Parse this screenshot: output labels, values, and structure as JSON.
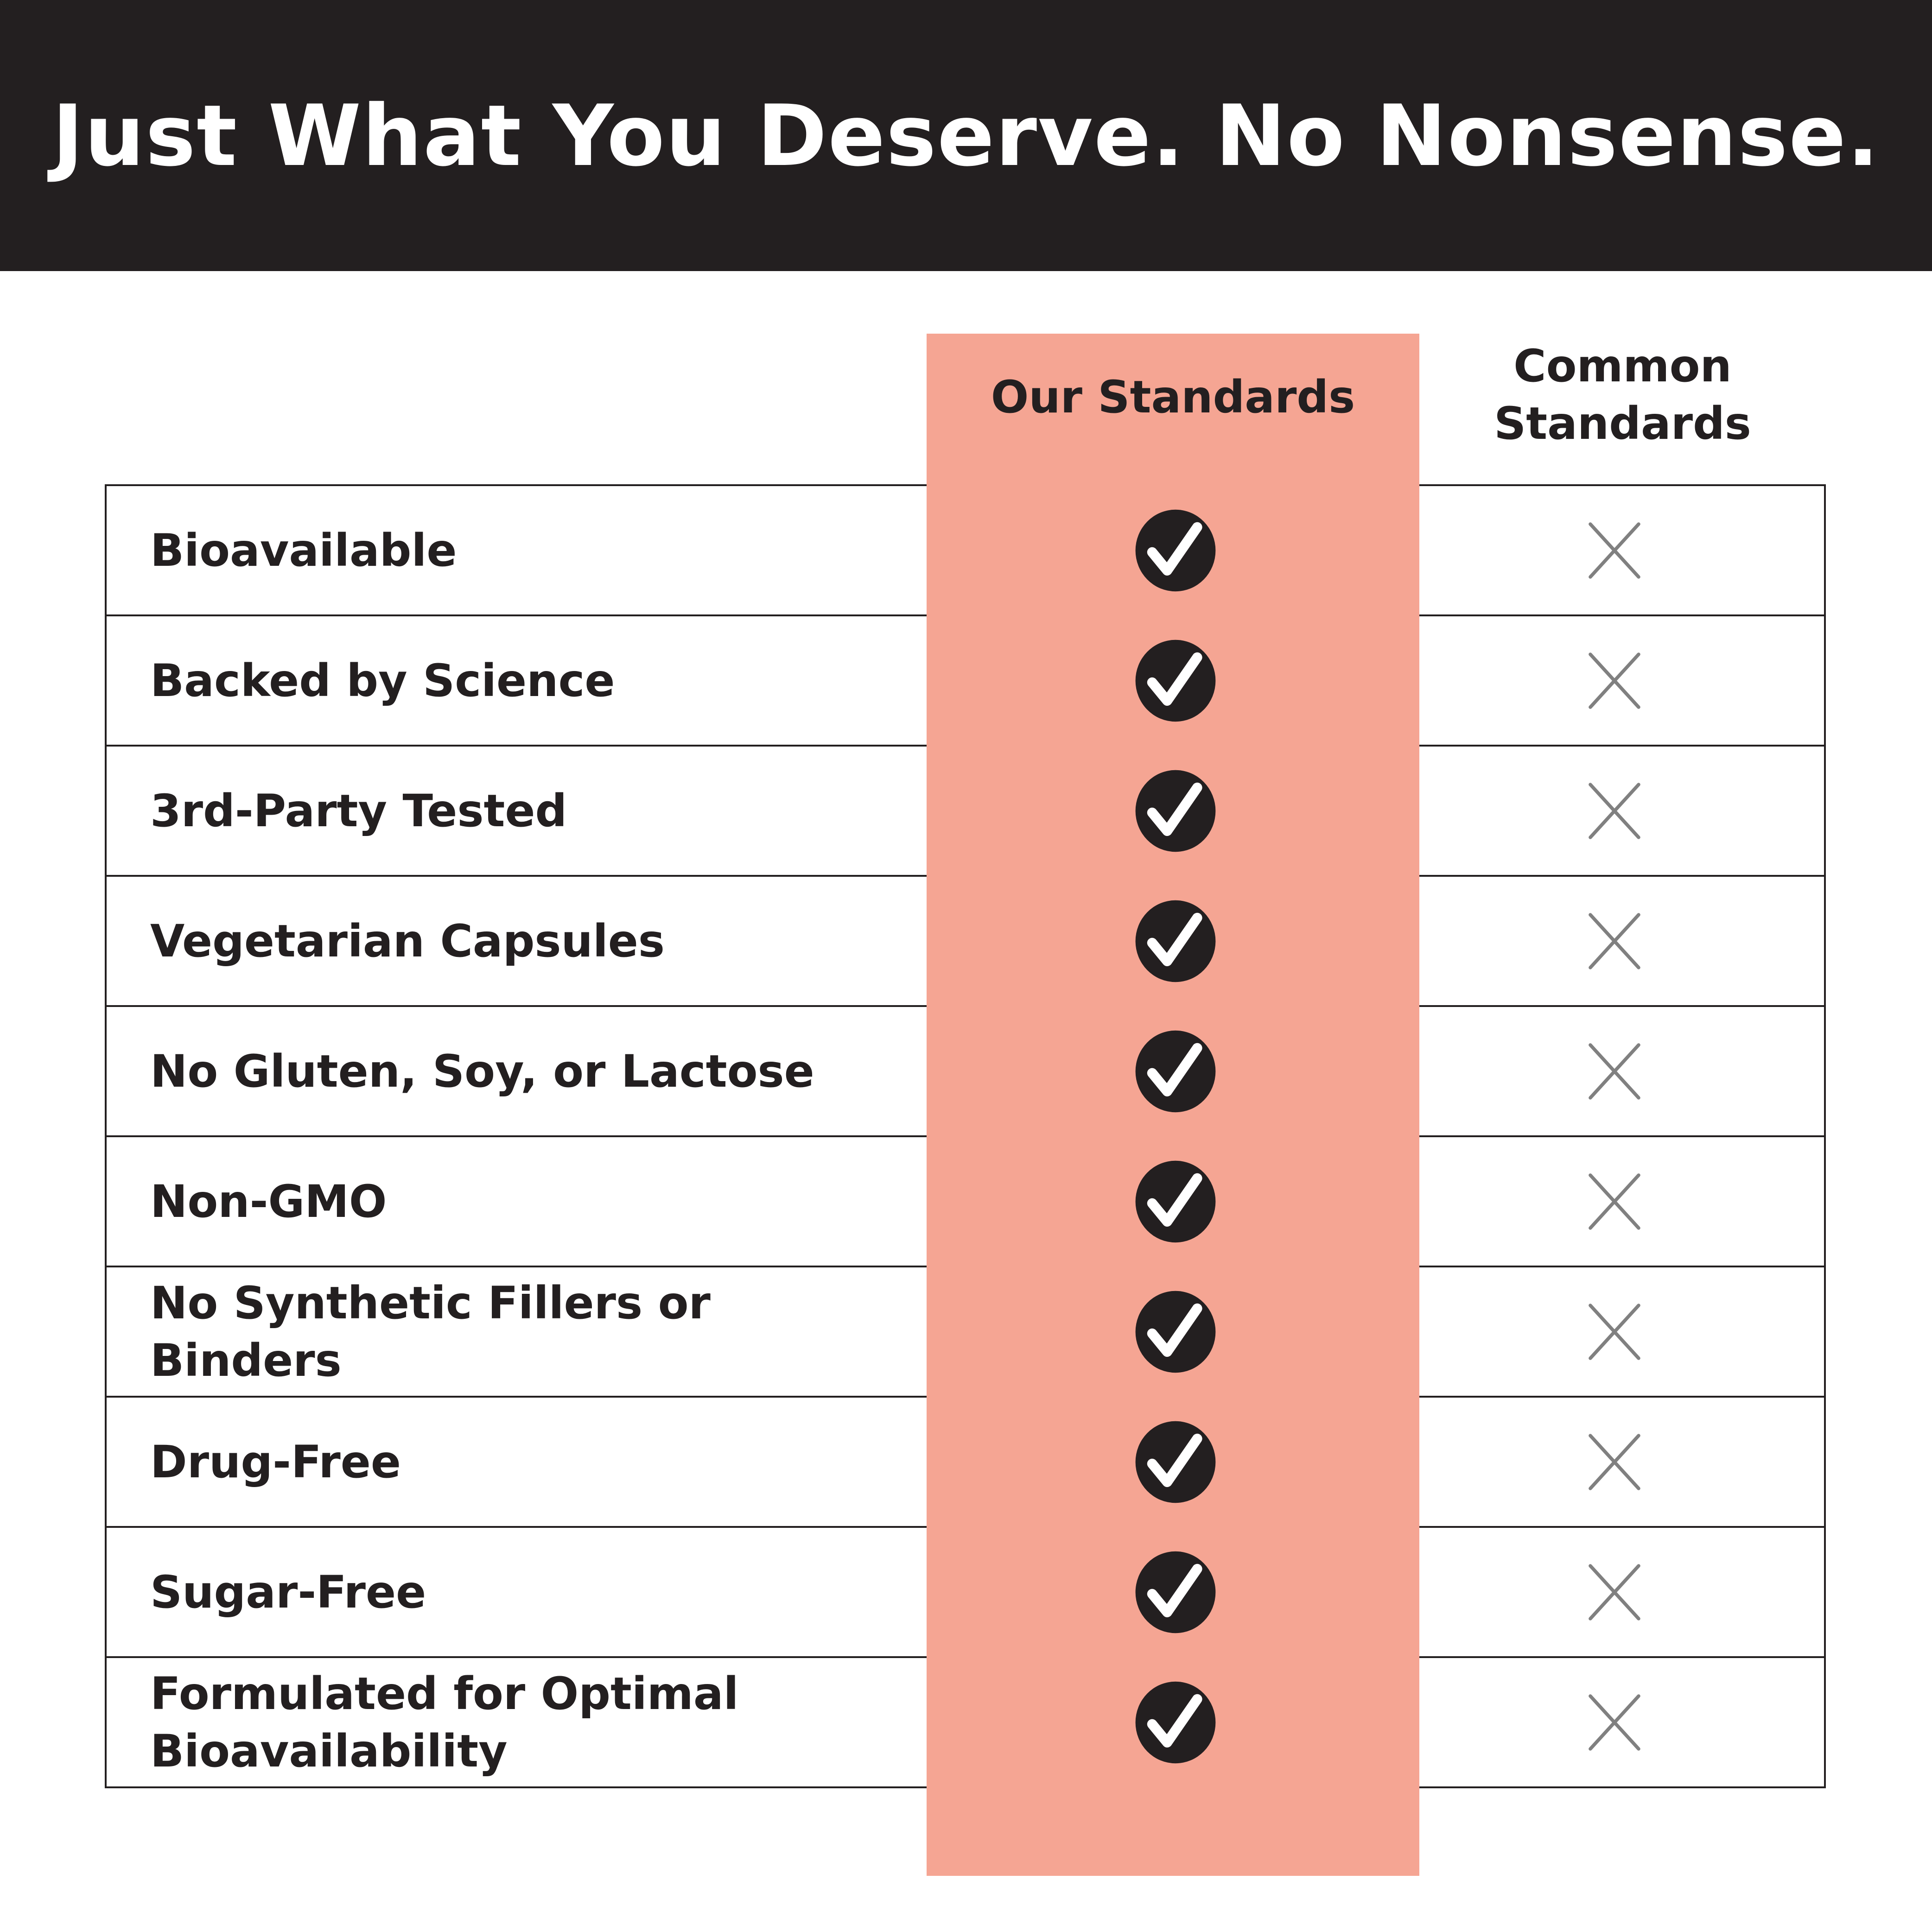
{
  "header": {
    "title": "Just What You Deserve. No Nonsense."
  },
  "columns": {
    "ours": "Our Standards",
    "common_line1": "Common",
    "common_line2": "Standards"
  },
  "colors": {
    "header_bg": "#231f20",
    "ours_bg": "#f5a593",
    "check": "#231f20",
    "cross": "#808080"
  },
  "icons": {
    "ours": "check-circle-icon",
    "common": "x-icon"
  },
  "rows": [
    {
      "label": "Bioavailable"
    },
    {
      "label": "Backed by Science"
    },
    {
      "label": "3rd-Party Tested"
    },
    {
      "label": "Vegetarian Capsules"
    },
    {
      "label": "No Gluten, Soy, or Lactose"
    },
    {
      "label": "Non-GMO"
    },
    {
      "label": "No Synthetic Fillers or Binders"
    },
    {
      "label": "Drug-Free"
    },
    {
      "label": "Sugar-Free"
    },
    {
      "label": "Formulated for Optimal Bioavailability"
    }
  ]
}
